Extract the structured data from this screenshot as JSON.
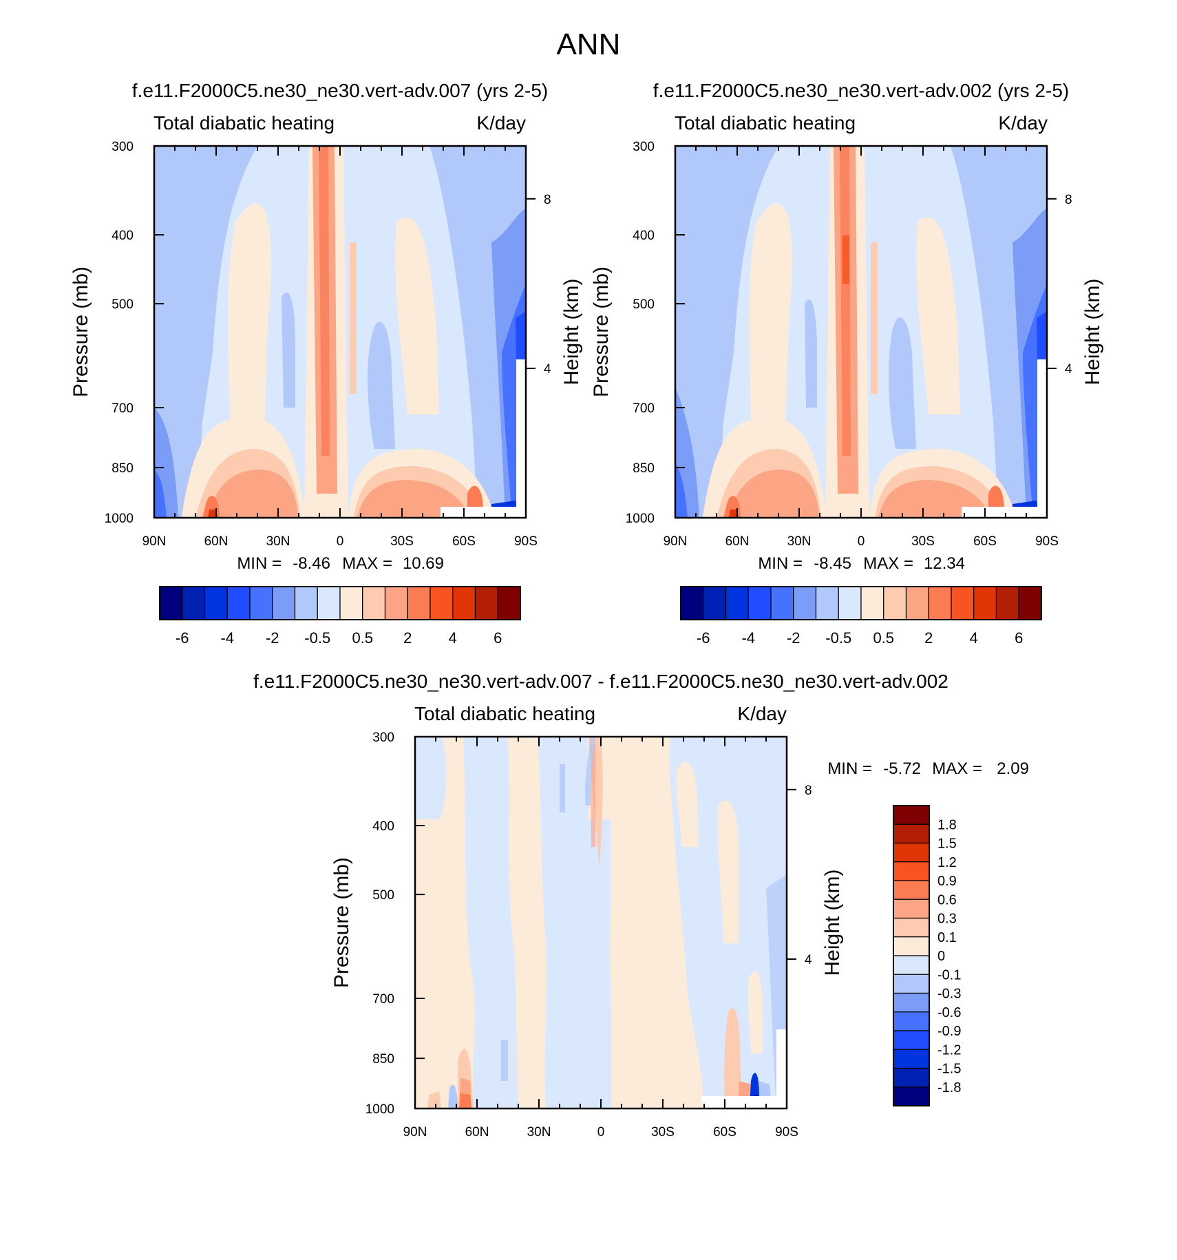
{
  "figure_title": "ANN",
  "colors": {
    "seq_main": [
      "#00007f",
      "#0021b3",
      "#0034de",
      "#1f4dff",
      "#4672ff",
      "#7b9cf7",
      "#b0c8fa",
      "#d9e8fc",
      "#fdebd9",
      "#fccbb0",
      "#fba585",
      "#fb7b52",
      "#f95322",
      "#e13506",
      "#b21f05",
      "#7f0000"
    ],
    "seq_diff": [
      "#00007f",
      "#0021b3",
      "#0034de",
      "#1f4dff",
      "#4672ff",
      "#7b9cf7",
      "#b0c8fa",
      "#d9e8fc",
      "#fdebd9",
      "#fccbb0",
      "#fba585",
      "#fb7b52",
      "#f95322",
      "#e13506",
      "#b21f05",
      "#7f0000"
    ]
  },
  "chart_data": [
    {
      "type": "heatmap",
      "title": "f.e11.F2000C5.ne30_ne30.vert-adv.007 (yrs 2-5)",
      "left_label": "Total diabatic heating",
      "units": "K/day",
      "ylabel": "Pressure (mb)",
      "ylabel_right": "Height (km)",
      "x_ticks": [
        "90N",
        "60N",
        "30N",
        "0",
        "30S",
        "60S",
        "90S"
      ],
      "y_ticks": [
        300,
        400,
        500,
        700,
        850,
        1000
      ],
      "y_right_ticks": [
        8,
        4
      ],
      "ylim": [
        1000,
        300
      ],
      "min_label": "MIN =",
      "min_value": "-8.46",
      "max_label": "MAX =",
      "max_value": "10.69",
      "colorbar_labels": [
        "-6",
        "-4",
        "-2",
        "-0.5",
        "0.5",
        "2",
        "4",
        "6"
      ]
    },
    {
      "type": "heatmap",
      "title": "f.e11.F2000C5.ne30_ne30.vert-adv.002 (yrs 2-5)",
      "left_label": "Total diabatic heating",
      "units": "K/day",
      "ylabel": "Pressure (mb)",
      "ylabel_right": "Height (km)",
      "x_ticks": [
        "90N",
        "60N",
        "30N",
        "0",
        "30S",
        "60S",
        "90S"
      ],
      "y_ticks": [
        300,
        400,
        500,
        700,
        850,
        1000
      ],
      "y_right_ticks": [
        8,
        4
      ],
      "ylim": [
        1000,
        300
      ],
      "min_label": "MIN =",
      "min_value": "-8.45",
      "max_label": "MAX =",
      "max_value": "12.34",
      "colorbar_labels": [
        "-6",
        "-4",
        "-2",
        "-0.5",
        "0.5",
        "2",
        "4",
        "6"
      ]
    },
    {
      "type": "heatmap",
      "title": "f.e11.F2000C5.ne30_ne30.vert-adv.007 - f.e11.F2000C5.ne30_ne30.vert-adv.002",
      "left_label": "Total diabatic heating",
      "units": "K/day",
      "ylabel": "Pressure (mb)",
      "ylabel_right": "Height (km)",
      "x_ticks": [
        "90N",
        "60N",
        "30N",
        "0",
        "30S",
        "60S",
        "90S"
      ],
      "y_ticks": [
        300,
        400,
        500,
        700,
        850,
        1000
      ],
      "y_right_ticks": [
        8,
        4
      ],
      "ylim": [
        1000,
        300
      ],
      "min_label": "MIN =",
      "min_value": "-5.72",
      "max_label": "MAX =",
      "max_value": "2.09",
      "colorbar_labels": [
        "1.8",
        "1.5",
        "1.2",
        "0.9",
        "0.6",
        "0.3",
        "0.1",
        "0",
        "-0.1",
        "-0.3",
        "-0.6",
        "-0.9",
        "-1.2",
        "-1.5",
        "-1.8"
      ]
    }
  ]
}
